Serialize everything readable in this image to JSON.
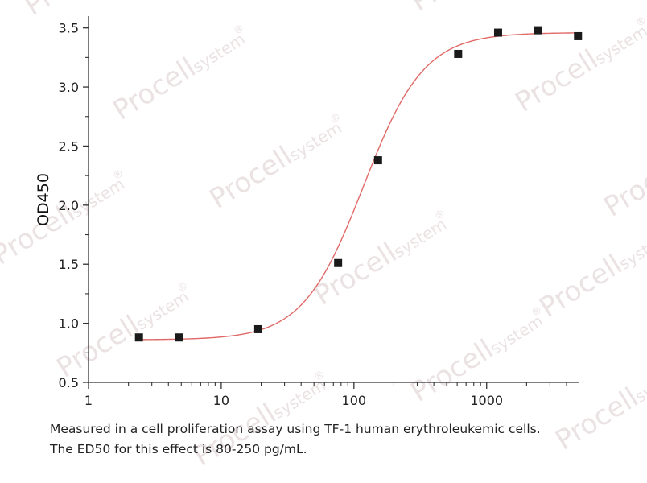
{
  "chart_data": {
    "type": "scatter",
    "xscale": "log",
    "xlim": [
      1,
      5000
    ],
    "ylim": [
      0.5,
      3.6
    ],
    "xticks": [
      1,
      10,
      100,
      1000
    ],
    "xtick_labels": [
      "1",
      "10",
      "100",
      "1000"
    ],
    "yticks": [
      0.5,
      1.0,
      1.5,
      2.0,
      2.5,
      3.0,
      3.5
    ],
    "ytick_labels": [
      "0.5",
      "1.0",
      "1.5",
      "2.0",
      "2.5",
      "3.0",
      "3.5"
    ],
    "xlabel": "",
    "ylabel": "OD450",
    "grid": false,
    "points": [
      {
        "x": 2.4,
        "y": 0.88
      },
      {
        "x": 4.8,
        "y": 0.88
      },
      {
        "x": 19,
        "y": 0.95
      },
      {
        "x": 76,
        "y": 1.51
      },
      {
        "x": 152,
        "y": 2.38
      },
      {
        "x": 610,
        "y": 3.28
      },
      {
        "x": 1220,
        "y": 3.46
      },
      {
        "x": 2440,
        "y": 3.48
      },
      {
        "x": 4880,
        "y": 3.43
      }
    ],
    "fit": {
      "model": "4PL",
      "bottom": 0.86,
      "top": 3.46,
      "ec50": 118,
      "hill": 1.9
    },
    "colors": {
      "points": "#1a1a1a",
      "fit_line": "#e06a68",
      "axis": "#333333"
    }
  },
  "caption": {
    "line1": "Measured in a cell proliferation assay using TF-1 human erythroleukemic cells.",
    "line2": "The ED50 for this effect is 80-250 pg/mL."
  },
  "watermark": {
    "brand": "Procell",
    "sub": "system",
    "mark": "®"
  }
}
